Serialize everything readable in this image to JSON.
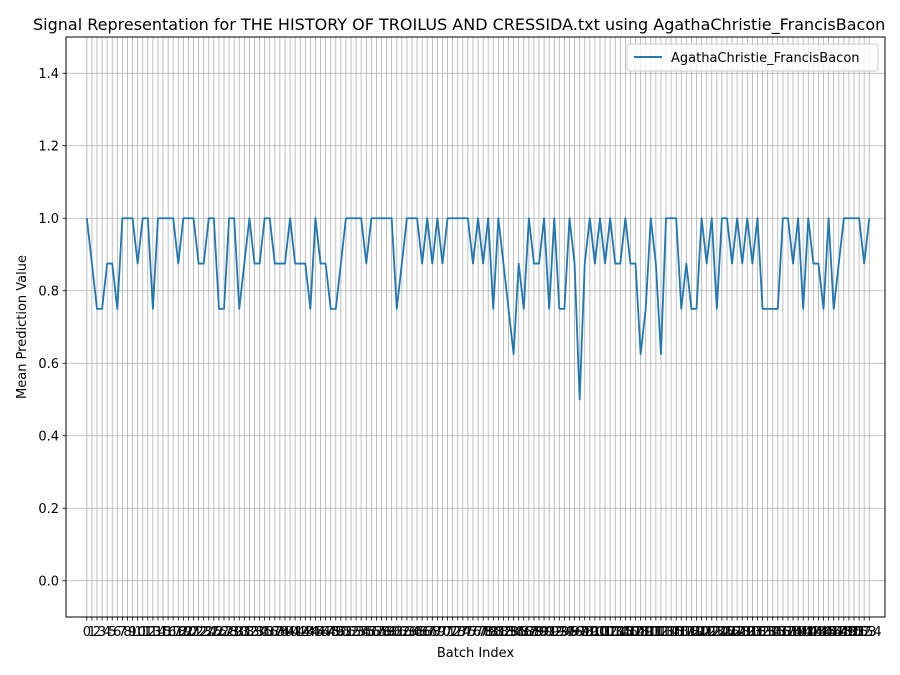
{
  "chart_data": {
    "type": "line",
    "title": "Signal Representation for THE HISTORY OF TROILUS AND CRESSIDA.txt using AgathaChristie_FrancisBacon",
    "xlabel": "Batch Index",
    "ylabel": "Mean Prediction Value",
    "ylim": [
      -0.1,
      1.5
    ],
    "yticks": [
      0.0,
      0.2,
      0.4,
      0.6,
      0.8,
      1.0,
      1.2,
      1.4
    ],
    "xlim": [
      -4.1,
      157.1
    ],
    "grid": true,
    "legend": "top-right",
    "series": [
      {
        "name": "AgathaChristie_FrancisBacon",
        "color": "#1f77b4",
        "values": [
          1.0,
          0.875,
          0.75,
          0.75,
          0.875,
          0.875,
          0.75,
          1.0,
          1.0,
          1.0,
          0.875,
          1.0,
          1.0,
          0.75,
          1.0,
          1.0,
          1.0,
          1.0,
          0.875,
          1.0,
          1.0,
          1.0,
          0.875,
          0.875,
          1.0,
          1.0,
          0.75,
          0.75,
          1.0,
          1.0,
          0.75,
          0.875,
          1.0,
          0.875,
          0.875,
          1.0,
          1.0,
          0.875,
          0.875,
          0.875,
          1.0,
          0.875,
          0.875,
          0.875,
          0.75,
          1.0,
          0.875,
          0.875,
          0.75,
          0.75,
          0.875,
          1.0,
          1.0,
          1.0,
          1.0,
          0.875,
          1.0,
          1.0,
          1.0,
          1.0,
          1.0,
          0.75,
          0.875,
          1.0,
          1.0,
          1.0,
          0.875,
          1.0,
          0.875,
          1.0,
          0.875,
          1.0,
          1.0,
          1.0,
          1.0,
          1.0,
          0.875,
          1.0,
          0.875,
          1.0,
          0.75,
          1.0,
          0.875,
          0.75,
          0.625,
          0.875,
          0.75,
          1.0,
          0.875,
          0.875,
          1.0,
          0.75,
          1.0,
          0.75,
          0.75,
          1.0,
          0.875,
          0.5,
          0.875,
          1.0,
          0.875,
          1.0,
          0.875,
          1.0,
          0.875,
          0.875,
          1.0,
          0.875,
          0.875,
          0.625,
          0.75,
          1.0,
          0.875,
          0.625,
          1.0,
          1.0,
          1.0,
          0.75,
          0.875,
          0.75,
          0.75,
          1.0,
          0.875,
          1.0,
          0.75,
          1.0,
          1.0,
          0.875,
          1.0,
          0.875,
          1.0,
          0.875,
          1.0,
          0.75,
          0.75,
          0.75,
          0.75,
          1.0,
          1.0,
          0.875,
          1.0,
          0.75,
          1.0,
          0.875,
          0.875,
          0.75,
          1.0,
          0.75,
          0.875,
          1.0,
          1.0,
          1.0,
          1.0,
          0.875,
          1.0
        ]
      }
    ]
  }
}
